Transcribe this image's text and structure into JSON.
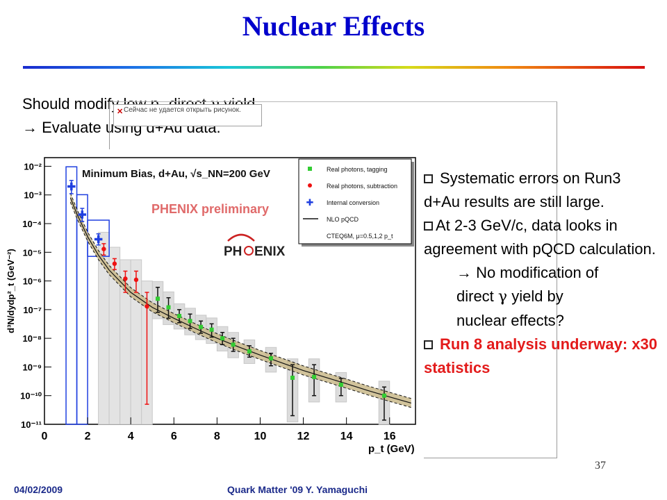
{
  "slide": {
    "title": "Nuclear Effects",
    "line1_prefix": "Should modify low p",
    "line1_sub": "T",
    "line1_mid": " direct ",
    "gamma": "γ",
    "line1_suffix": " yield",
    "line2": "→ Evaluate using d+Au data.",
    "popup_message": "Сейчас не удается открыть рисунок.",
    "bullets": [
      {
        "text": "Systematic errors on Run3 d+Au results are still large."
      },
      {
        "text": "At 2-3 GeV/c, data looks in agreement with pQCD calculation."
      }
    ],
    "sub_line1": "→ No modification of",
    "sub_line2_pre": "direct ",
    "sub_line2_post": " yield by",
    "sub_line3": "nuclear effects?",
    "red_bullet": "Run 8 analysis underway: x30 statistics",
    "slide_number": "37",
    "footer_date": "04/02/2009",
    "footer_conf": "Quark Matter '09  Y. Yamaguchi",
    "colors": {
      "title": "#0000cc",
      "footer": "#1b2a8a",
      "highlight": "#e31b1b"
    }
  },
  "chart_data": {
    "type": "scatter",
    "title": "Minimum Bias, d+Au, √s_NN=200 GeV",
    "watermark": "PHENIX preliminary",
    "logo_text": [
      "PH",
      "ENIX"
    ],
    "ylabel": "d³N/dydp²_t (GeV⁻²)",
    "xlabel": "p_t (GeV)",
    "xlim": [
      0,
      17.2
    ],
    "ylim": [
      1e-11,
      0.02
    ],
    "yscale": "log",
    "xticks": [
      0,
      2,
      4,
      6,
      8,
      10,
      12,
      14,
      16
    ],
    "ytick_labels": [
      "10⁻²",
      "10⁻³",
      "10⁻⁴",
      "10⁻⁵",
      "10⁻⁶",
      "10⁻⁷",
      "10⁻⁸",
      "10⁻⁹",
      "10⁻¹⁰",
      "10⁻¹¹"
    ],
    "legend_position": "top-right",
    "legend": [
      {
        "label": "Real photons, tagging",
        "marker": "square",
        "color": "#33cc33"
      },
      {
        "label": "Real photons, subtraction",
        "marker": "circle",
        "color": "#ee1111"
      },
      {
        "label": "Internal conversion",
        "marker": "cross",
        "color": "#1f3fe0"
      },
      {
        "label": "NLO pQCD",
        "marker": "line",
        "color": "#111111"
      },
      {
        "label": "CTEQ6M, μ=0.5,1,2 p_t",
        "marker": "none",
        "color": "#111111"
      }
    ],
    "series": [
      {
        "name": "Real photons, tagging",
        "color": "#33cc33",
        "x": [
          5.25,
          5.75,
          6.25,
          6.75,
          7.25,
          7.75,
          8.25,
          8.75,
          9.5,
          10.5,
          11.5,
          12.5,
          13.75,
          15.75
        ],
        "y": [
          2.4e-07,
          1.2e-07,
          6e-08,
          4e-08,
          2.5e-08,
          2e-08,
          1e-08,
          6e-09,
          3.5e-09,
          2e-09,
          4.2e-10,
          4.5e-10,
          2.4e-10,
          1e-10
        ],
        "ylo": [
          8e-08,
          5e-08,
          3.5e-08,
          2.2e-08,
          1.5e-08,
          1.1e-08,
          6e-09,
          3.5e-09,
          2.2e-09,
          1.1e-09,
          2e-11,
          1e-10,
          1e-10,
          1.4e-11
        ],
        "yhi": [
          6e-07,
          2.6e-07,
          1e-07,
          7e-08,
          4e-08,
          3.2e-08,
          1.6e-08,
          1e-08,
          5.5e-09,
          3e-09,
          1.2e-09,
          1.2e-09,
          4e-10,
          2e-10
        ]
      },
      {
        "name": "Real photons, subtraction",
        "color": "#ee1111",
        "x": [
          2.75,
          3.25,
          3.75,
          4.25,
          4.75
        ],
        "y": [
          1.3e-05,
          4e-06,
          1.2e-06,
          1.1e-06,
          1.3e-07
        ],
        "ylo": [
          8e-06,
          2.5e-06,
          4e-07,
          4e-07,
          5e-11
        ],
        "yhi": [
          2e-05,
          6e-06,
          2.2e-06,
          2.2e-06,
          4e-07
        ]
      },
      {
        "name": "Internal conversion",
        "color": "#1f3fe0",
        "x": [
          1.25,
          1.75,
          2.5
        ],
        "y": [
          0.0019,
          0.0002,
          2.8e-05
        ],
        "ylo": [
          0.0011,
          0.00012,
          1.8e-05
        ],
        "yhi": [
          0.0032,
          0.00034,
          4.4e-05
        ]
      },
      {
        "name": "NLO pQCD",
        "color": "#111111",
        "x": [
          1.2,
          1.5,
          2,
          2.5,
          3,
          4,
          5,
          6,
          7,
          8,
          9,
          10,
          11,
          12,
          13,
          14,
          15,
          16,
          17
        ],
        "y": [
          0.0008,
          0.00022,
          3.5e-05,
          8e-06,
          2.4e-06,
          4e-07,
          1.2e-07,
          5e-08,
          2.2e-08,
          1e-08,
          5e-09,
          2.6e-09,
          1.4e-09,
          7.5e-10,
          4.4e-10,
          2.6e-10,
          1.5e-10,
          9e-11,
          5.5e-11
        ]
      }
    ]
  }
}
